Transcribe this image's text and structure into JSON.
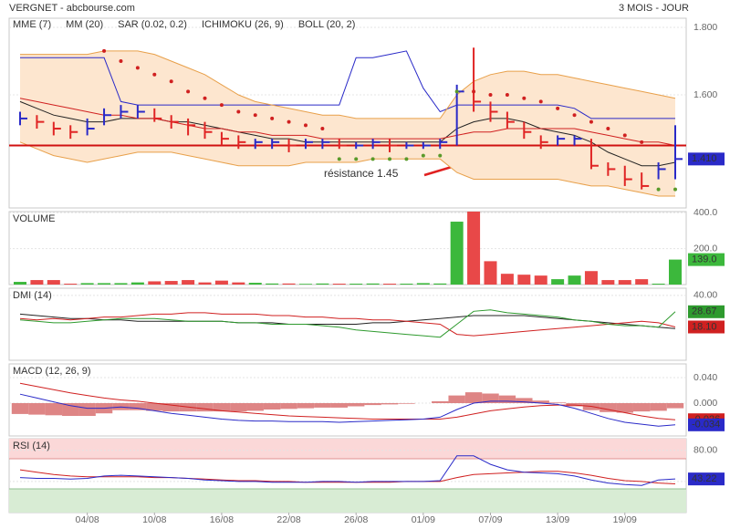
{
  "chart_data": [
    {
      "type": "hlc",
      "title": "VERGNET - abcbourse.com",
      "subtitle": "3 MOIS - JOUR",
      "categories": [
        null,
        null,
        null,
        null,
        "04/08",
        null,
        null,
        null,
        "10/08",
        null,
        null,
        null,
        "16/08",
        null,
        null,
        null,
        "22/08",
        null,
        null,
        null,
        "26/08",
        null,
        null,
        null,
        "01/09",
        null,
        null,
        null,
        "07/09",
        null,
        null,
        null,
        "13/09",
        null,
        null,
        null,
        "19/09",
        null,
        null,
        null
      ],
      "close": [
        1.53,
        1.52,
        1.5,
        1.49,
        1.5,
        1.54,
        1.55,
        1.55,
        1.53,
        1.52,
        1.51,
        1.49,
        1.47,
        1.46,
        1.46,
        1.46,
        1.45,
        1.46,
        1.46,
        1.45,
        1.45,
        1.46,
        1.45,
        1.45,
        1.45,
        1.46,
        1.61,
        1.58,
        1.55,
        1.52,
        1.49,
        1.46,
        1.47,
        1.47,
        1.39,
        1.38,
        1.35,
        1.33,
        1.38,
        1.41
      ],
      "high": [
        1.55,
        1.54,
        1.52,
        1.51,
        1.53,
        1.56,
        1.57,
        1.57,
        1.56,
        1.54,
        1.53,
        1.52,
        1.49,
        1.48,
        1.47,
        1.47,
        1.47,
        1.47,
        1.47,
        1.47,
        1.46,
        1.47,
        1.47,
        1.46,
        1.46,
        1.47,
        1.63,
        1.74,
        1.58,
        1.55,
        1.52,
        1.48,
        1.48,
        1.48,
        1.47,
        1.4,
        1.39,
        1.37,
        1.4,
        1.51
      ],
      "low": [
        1.51,
        1.5,
        1.48,
        1.47,
        1.48,
        1.51,
        1.53,
        1.53,
        1.52,
        1.5,
        1.48,
        1.47,
        1.45,
        1.44,
        1.44,
        1.44,
        1.43,
        1.44,
        1.44,
        1.44,
        1.44,
        1.44,
        1.43,
        1.44,
        1.44,
        1.44,
        1.45,
        1.55,
        1.52,
        1.5,
        1.47,
        1.44,
        1.45,
        1.45,
        1.38,
        1.36,
        1.33,
        1.32,
        1.35,
        1.35
      ],
      "up_color": "#2a2ac8",
      "down_color": "#e02424",
      "ylim": [
        1.265,
        1.827
      ],
      "yticks": [
        {
          "value": 1.8,
          "label": "1.800"
        },
        {
          "value": 1.6,
          "label": "1.600"
        }
      ],
      "last_label": "1.410",
      "last_color": "#2a2ac8",
      "resistance": 1.45,
      "resistance_color": "#d01010",
      "annotation": "résistance 1.45",
      "series": [
        {
          "name": "MME (7)",
          "color": "#222222",
          "values": [
            1.58,
            1.56,
            1.54,
            1.53,
            1.52,
            1.52,
            1.53,
            1.53,
            1.53,
            1.52,
            1.52,
            1.51,
            1.5,
            1.49,
            1.48,
            1.47,
            1.47,
            1.46,
            1.46,
            1.46,
            1.46,
            1.46,
            1.46,
            1.46,
            1.46,
            1.46,
            1.5,
            1.52,
            1.53,
            1.53,
            1.52,
            1.5,
            1.49,
            1.48,
            1.46,
            1.43,
            1.41,
            1.39,
            1.39,
            1.4
          ]
        },
        {
          "name": "MM (20)",
          "color": "#d02020",
          "values": [
            1.59,
            1.58,
            1.57,
            1.56,
            1.55,
            1.54,
            1.54,
            1.53,
            1.53,
            1.52,
            1.51,
            1.5,
            1.5,
            1.49,
            1.49,
            1.48,
            1.48,
            1.48,
            1.47,
            1.47,
            1.47,
            1.47,
            1.47,
            1.47,
            1.47,
            1.47,
            1.48,
            1.49,
            1.49,
            1.5,
            1.5,
            1.5,
            1.5,
            1.5,
            1.49,
            1.48,
            1.47,
            1.46,
            1.46,
            1.45
          ]
        },
        {
          "name": "SAR (0.02, 0.2)",
          "color": "#d02020",
          "color_below": "#5a9a2a",
          "dots": true,
          "values": [
            null,
            null,
            null,
            null,
            null,
            1.73,
            1.7,
            1.68,
            1.66,
            1.64,
            1.61,
            1.59,
            1.57,
            1.55,
            1.54,
            1.53,
            1.52,
            1.51,
            1.5,
            1.41,
            1.41,
            1.41,
            1.41,
            1.41,
            1.42,
            1.42,
            1.61,
            1.61,
            1.6,
            1.6,
            1.59,
            1.58,
            1.56,
            1.54,
            1.52,
            1.5,
            1.48,
            1.46,
            1.32,
            1.32
          ]
        },
        {
          "name": "ICHIMOKU (26, 9)",
          "color": "#2a2ac8",
          "values": [
            1.71,
            1.71,
            1.71,
            1.71,
            1.71,
            1.71,
            1.58,
            1.57,
            1.57,
            1.57,
            1.57,
            1.57,
            1.57,
            1.57,
            1.57,
            1.57,
            1.57,
            1.57,
            1.57,
            1.57,
            1.71,
            1.71,
            1.72,
            1.73,
            1.62,
            1.55,
            1.57,
            1.57,
            1.57,
            1.57,
            1.57,
            1.57,
            1.57,
            1.56,
            1.53,
            1.53,
            1.53,
            1.53,
            1.53,
            1.53
          ]
        },
        {
          "name": "BOLL (20, 2)",
          "color": "#e8a04a",
          "fill": "#fde6cf",
          "values": [
            1.72,
            1.72,
            1.72,
            1.72,
            1.72,
            1.73,
            1.73,
            1.73,
            1.72,
            1.7,
            1.68,
            1.66,
            1.63,
            1.6,
            1.58,
            1.57,
            1.56,
            1.55,
            1.54,
            1.54,
            1.53,
            1.53,
            1.53,
            1.53,
            1.53,
            1.53,
            1.6,
            1.64,
            1.66,
            1.67,
            1.67,
            1.66,
            1.66,
            1.65,
            1.64,
            1.63,
            1.62,
            1.61,
            1.6,
            1.59
          ],
          "lower": [
            1.46,
            1.44,
            1.42,
            1.41,
            1.4,
            1.41,
            1.42,
            1.43,
            1.43,
            1.43,
            1.42,
            1.41,
            1.4,
            1.39,
            1.39,
            1.39,
            1.39,
            1.4,
            1.4,
            1.4,
            1.4,
            1.41,
            1.41,
            1.41,
            1.41,
            1.41,
            1.37,
            1.35,
            1.35,
            1.35,
            1.35,
            1.35,
            1.35,
            1.34,
            1.33,
            1.33,
            1.32,
            1.31,
            1.3,
            1.3
          ]
        }
      ]
    },
    {
      "type": "bar",
      "title": "VOLUME",
      "title_color": "#3a9a3a",
      "values": [
        15,
        25,
        25,
        5,
        8,
        8,
        8,
        12,
        18,
        20,
        25,
        12,
        22,
        12,
        10,
        6,
        6,
        4,
        6,
        5,
        5,
        6,
        5,
        5,
        8,
        6,
        350,
        410,
        130,
        60,
        55,
        50,
        30,
        50,
        75,
        25,
        25,
        30,
        5,
        139
      ],
      "up_color": "#3cb83c",
      "down_color": "#e84848",
      "ylim": [
        0,
        406
      ],
      "yticks": [
        {
          "value": 400,
          "label": "400.0"
        },
        {
          "value": 200,
          "label": "200.0"
        }
      ],
      "last_label": "139.0",
      "last_color": "#3cb83c"
    },
    {
      "type": "line",
      "title": "DMI (14)",
      "ylim": [
        -5,
        45
      ],
      "yticks": [
        {
          "value": 40,
          "label": "40.00"
        }
      ],
      "series": [
        {
          "color": "#222222",
          "values": [
            27,
            26,
            25,
            24,
            24,
            23,
            23,
            22,
            22,
            22,
            22,
            22,
            22,
            21,
            21,
            21,
            20,
            20,
            20,
            20,
            20,
            21,
            21,
            22,
            23,
            24,
            25,
            26,
            26,
            26,
            26,
            25,
            24,
            23,
            22,
            21,
            20,
            19,
            18,
            17
          ]
        },
        {
          "color": "#d02020",
          "values": [
            24,
            23,
            24,
            23,
            24,
            25,
            25,
            26,
            27,
            27,
            28,
            28,
            27,
            27,
            27,
            26,
            26,
            25,
            25,
            24,
            24,
            23,
            23,
            22,
            21,
            20,
            13,
            12,
            13,
            14,
            15,
            16,
            17,
            18,
            19,
            20,
            21,
            22,
            21,
            18.1
          ],
          "last_label": "18.10"
        },
        {
          "color": "#2e9a2e",
          "values": [
            23,
            22,
            21,
            21,
            22,
            23,
            24,
            24,
            24,
            23,
            22,
            22,
            22,
            21,
            21,
            20,
            20,
            20,
            19,
            18,
            16,
            15,
            14,
            13,
            12,
            11,
            20,
            29,
            30,
            28,
            27,
            26,
            25,
            23,
            22,
            20,
            19,
            19,
            18,
            28.67
          ],
          "last_label": "28.67"
        }
      ]
    },
    {
      "type": "line",
      "title": "MACD (12, 26, 9)",
      "ylim": [
        -0.0514,
        0.0614
      ],
      "yticks": [
        {
          "value": 0.04,
          "label": "0.040"
        },
        {
          "value": 0,
          "label": "0.000"
        }
      ],
      "histogram": {
        "color": "#d87070",
        "values": [
          -0.017,
          -0.018,
          -0.019,
          -0.02,
          -0.02,
          -0.016,
          -0.011,
          -0.011,
          -0.012,
          -0.013,
          -0.013,
          -0.013,
          -0.013,
          -0.013,
          -0.012,
          -0.01,
          -0.009,
          -0.008,
          -0.007,
          -0.007,
          -0.005,
          -0.003,
          -0.002,
          -0.001,
          0.0,
          0.003,
          0.012,
          0.017,
          0.015,
          0.012,
          0.008,
          0.004,
          0.001,
          -0.005,
          -0.011,
          -0.014,
          -0.015,
          -0.013,
          -0.012,
          -0.008
        ]
      },
      "series": [
        {
          "color": "#d02020",
          "values": [
            0.031,
            0.026,
            0.021,
            0.016,
            0.012,
            0.008,
            0.005,
            0.003,
            0.0,
            -0.003,
            -0.006,
            -0.009,
            -0.012,
            -0.014,
            -0.016,
            -0.018,
            -0.02,
            -0.021,
            -0.022,
            -0.023,
            -0.024,
            -0.025,
            -0.025,
            -0.025,
            -0.025,
            -0.025,
            -0.022,
            -0.017,
            -0.012,
            -0.009,
            -0.006,
            -0.004,
            -0.003,
            -0.003,
            -0.005,
            -0.01,
            -0.015,
            -0.02,
            -0.024,
            -0.026
          ],
          "last_label": "-0.026"
        },
        {
          "color": "#2a2ac8",
          "values": [
            0.014,
            0.008,
            0.002,
            -0.004,
            -0.008,
            -0.008,
            -0.006,
            -0.008,
            -0.012,
            -0.016,
            -0.019,
            -0.022,
            -0.025,
            -0.027,
            -0.028,
            -0.028,
            -0.029,
            -0.029,
            -0.029,
            -0.03,
            -0.029,
            -0.028,
            -0.027,
            -0.026,
            -0.025,
            -0.022,
            -0.01,
            0.0,
            0.003,
            0.003,
            0.002,
            0.0,
            -0.002,
            -0.008,
            -0.016,
            -0.024,
            -0.03,
            -0.033,
            -0.036,
            -0.034
          ],
          "last_label": "-0.034"
        }
      ]
    },
    {
      "type": "line",
      "title": "RSI (14)",
      "ylim": [
        0,
        95
      ],
      "yticks": [
        {
          "value": 80,
          "label": "80.00"
        },
        {
          "value": 40,
          "label": "40.00"
        }
      ],
      "series": [
        {
          "color": "#d02020",
          "values": [
            55,
            52,
            49,
            47,
            46,
            46,
            46,
            46,
            45,
            45,
            44,
            43,
            42,
            41,
            41,
            40,
            40,
            39,
            39,
            39,
            39,
            39,
            39,
            40,
            40,
            40,
            45,
            49,
            50,
            51,
            52,
            53,
            53,
            51,
            48,
            44,
            41,
            40,
            38,
            37
          ]
        },
        {
          "color": "#2a2ac8",
          "values": [
            45,
            44,
            44,
            43,
            44,
            47,
            48,
            47,
            46,
            45,
            44,
            42,
            41,
            40,
            40,
            39,
            39,
            39,
            40,
            40,
            39,
            40,
            40,
            40,
            40,
            41,
            73,
            73,
            62,
            55,
            52,
            51,
            50,
            47,
            42,
            38,
            36,
            35,
            42,
            43.22
          ],
          "last_label": "43.22"
        }
      ]
    }
  ]
}
